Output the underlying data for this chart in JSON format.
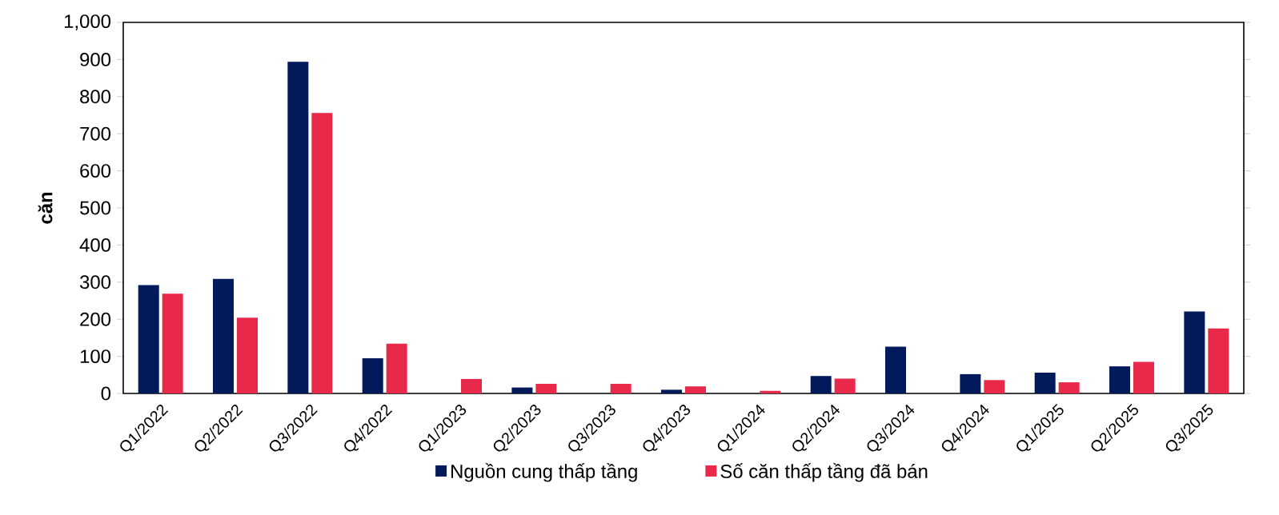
{
  "chart_data": {
    "type": "bar",
    "ylabel": "căn",
    "categories": [
      "Q1/2022",
      "Q2/2022",
      "Q3/2022",
      "Q4/2022",
      "Q1/2023",
      "Q2/2023",
      "Q3/2023",
      "Q4/2023",
      "Q1/2024",
      "Q2/2024",
      "Q3/2024",
      "Q4/2024",
      "Q1/2025",
      "Q2/2025",
      "Q3/2025"
    ],
    "series": [
      {
        "name": "Nguồn cung thấp tầng",
        "color": "#001a5c",
        "values": [
          292,
          309,
          894,
          95,
          0,
          16,
          0,
          10,
          0,
          47,
          126,
          52,
          56,
          73,
          221
        ]
      },
      {
        "name": "Số căn thấp tầng đã bán",
        "color": "#e8294a",
        "values": [
          269,
          204,
          756,
          134,
          39,
          26,
          26,
          19,
          7,
          40,
          0,
          36,
          30,
          85,
          175
        ]
      }
    ],
    "ylim": [
      0,
      1000
    ],
    "yticks": [
      0,
      100,
      200,
      300,
      400,
      500,
      600,
      700,
      800,
      900,
      {
        "value": 1000,
        "label": "1,000"
      }
    ],
    "grid": false,
    "legend": "bottom"
  }
}
